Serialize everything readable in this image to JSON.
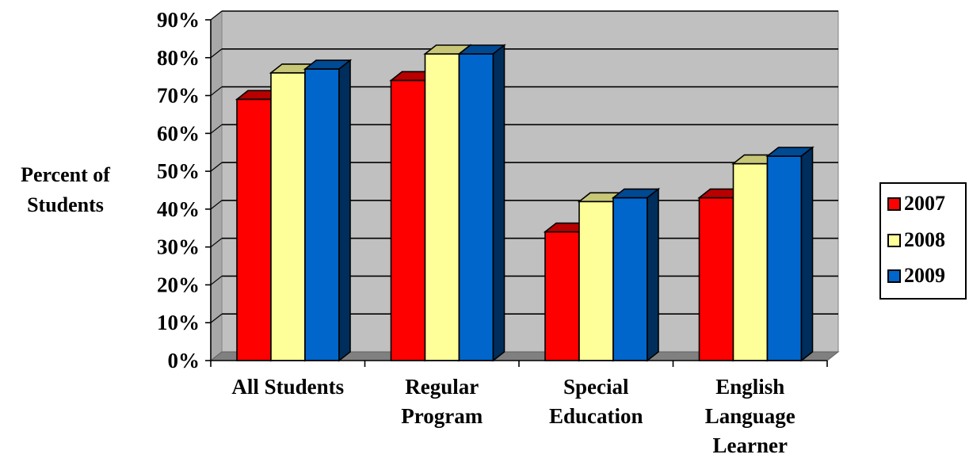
{
  "chart_data": {
    "type": "bar",
    "title": "",
    "xlabel": "",
    "ylabel": [
      "Percent of",
      "Students"
    ],
    "ylim": [
      0,
      90
    ],
    "ytick_step": 10,
    "ytick_suffix": "%",
    "grid": true,
    "legend_position": "right",
    "categories": [
      [
        "All Students"
      ],
      [
        "Regular",
        "Program"
      ],
      [
        "Special",
        "Education"
      ],
      [
        "English",
        "Language",
        "Learner"
      ]
    ],
    "series": [
      {
        "name": "2007",
        "color": "#ff0000",
        "values": [
          69,
          74,
          34,
          43
        ]
      },
      {
        "name": "2008",
        "color": "#ffff99",
        "values": [
          76,
          81,
          42,
          52
        ]
      },
      {
        "name": "2009",
        "color": "#0066cc",
        "values": [
          77,
          81,
          43,
          54
        ]
      }
    ]
  }
}
